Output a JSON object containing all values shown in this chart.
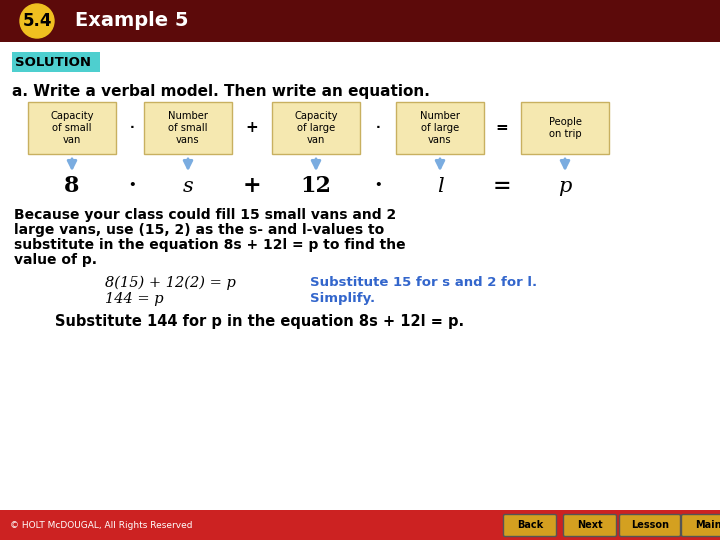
{
  "header_bg": "#5c0a0a",
  "header_text": "Example 5",
  "header_badge_bg": "#f0c020",
  "header_badge_text": "5.4",
  "solution_bg": "#4ecfcf",
  "solution_text": "SOLUTION",
  "instruction_text": "a. Write a verbal model. Then write an equation.",
  "box_bg": "#f5e8b0",
  "box_border": "#c8b060",
  "box_labels": [
    "Capacity\nof small\nvan",
    "Number\nof small\nvans",
    "Capacity\nof large\nvan",
    "Number\nof large\nvans",
    "People\non trip"
  ],
  "operators": [
    "·",
    "+",
    "·",
    "="
  ],
  "equation_terms": [
    "8",
    "·",
    "s",
    "+",
    "12",
    "·",
    "l",
    "=",
    "p"
  ],
  "body_text1": "Because your class could fill 15 small vans and 2",
  "body_text2": "large vans, use (15, 2) as the s- and l-values to",
  "body_text3": "substitute in the equation 8s + 12l = p to find the",
  "body_text4": "value of p.",
  "eq1_left": "8(15) + 12(2) = p",
  "eq1_right_color": "#3366cc",
  "eq1_right": "Substitute 15 for s and 2 for l.",
  "eq2_left": "144 = p",
  "eq2_right": "Simplify.",
  "bottom_text": "Substitute 144 for p in the equation 8s + 12l = p.",
  "footer_bg": "#cc2222",
  "footer_text": "© HOLT McDOUGAL, All Rights Reserved",
  "arrow_color": "#7aace0",
  "white": "#ffffff",
  "black": "#000000"
}
